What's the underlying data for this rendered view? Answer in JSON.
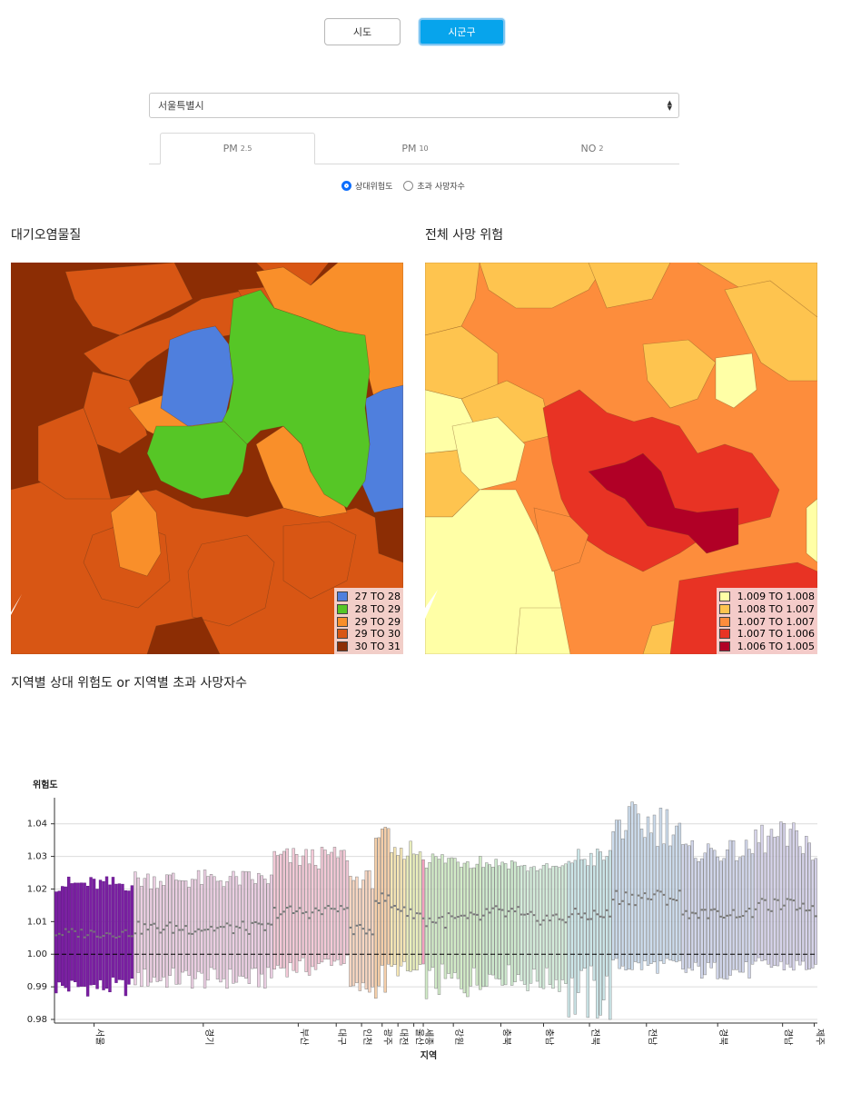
{
  "level_toggle": {
    "sido": "시도",
    "sigungu": "시군구",
    "active": "sigungu"
  },
  "region_select": {
    "value": "서울특별시"
  },
  "pollutant_tabs": [
    {
      "main": "PM",
      "sub": "2.5",
      "active": true
    },
    {
      "main": "PM",
      "sub": "10",
      "active": false
    },
    {
      "main": "NO",
      "sub": "2",
      "active": false
    }
  ],
  "metric_radios": [
    {
      "label": "상대위험도",
      "checked": true
    },
    {
      "label": "초과 사망자수",
      "checked": false
    }
  ],
  "pollutant_map": {
    "title": "대기오염물질",
    "legend": [
      {
        "label": "27 TO 28",
        "color": "#4f7fdd"
      },
      {
        "label": "28 TO 29",
        "color": "#56c626"
      },
      {
        "label": "29 TO 29",
        "color": "#f98f2a"
      },
      {
        "label": "29 TO 30",
        "color": "#d85614"
      },
      {
        "label": "30 TO 31",
        "color": "#8c2d04"
      }
    ]
  },
  "risk_map": {
    "title": "전체 사망 위험",
    "legend": [
      {
        "label": "1.009 TO 1.008",
        "color": "#ffffa6"
      },
      {
        "label": "1.008 TO 1.007",
        "color": "#fec44f"
      },
      {
        "label": "1.007 TO 1.007",
        "color": "#fd8d3c"
      },
      {
        "label": "1.007 TO 1.006",
        "color": "#e83324"
      },
      {
        "label": "1.006 TO 1.005",
        "color": "#b10026"
      }
    ]
  },
  "regional_section": {
    "title": "지역별 상대 위험도 or 지역별 초과 사망자수"
  },
  "chart_data": {
    "type": "errorbar",
    "ylabel": "위험도",
    "xlabel": "지역",
    "ylim": [
      0.98,
      1.048
    ],
    "yticks": [
      0.98,
      0.99,
      1.0,
      1.01,
      1.02,
      1.03,
      1.04
    ],
    "reference_line": 1.0,
    "groups": [
      {
        "name": "서울",
        "count": 25,
        "color": "#7b1fa2",
        "est_range": [
          1.005,
          1.008
        ],
        "lower_range": [
          0.987,
          0.993
        ],
        "upper_range": [
          1.019,
          1.024
        ]
      },
      {
        "name": "경기",
        "count": 44,
        "color": "#e8c6dd",
        "est_range": [
          1.006,
          1.01
        ],
        "lower_range": [
          0.989,
          0.996
        ],
        "upper_range": [
          1.02,
          1.026
        ]
      },
      {
        "name": "부산",
        "count": 16,
        "color": "#f2bfd0",
        "est_range": [
          1.011,
          1.015
        ],
        "lower_range": [
          0.993,
          0.999
        ],
        "upper_range": [
          1.026,
          1.033
        ]
      },
      {
        "name": "대구",
        "count": 8,
        "color": "#f2bfd0",
        "est_range": [
          1.013,
          1.015
        ],
        "lower_range": [
          0.996,
          1.0
        ],
        "upper_range": [
          1.028,
          1.033
        ]
      },
      {
        "name": "인천",
        "count": 8,
        "color": "#f7cfb6",
        "est_range": [
          1.006,
          1.009
        ],
        "lower_range": [
          0.987,
          0.992
        ],
        "upper_range": [
          1.02,
          1.026
        ]
      },
      {
        "name": "광주",
        "count": 5,
        "color": "#f5c79a",
        "est_range": [
          1.015,
          1.019
        ],
        "lower_range": [
          0.986,
          0.998
        ],
        "upper_range": [
          1.034,
          1.039
        ]
      },
      {
        "name": "대전",
        "count": 5,
        "color": "#f6e3a8",
        "est_range": [
          1.012,
          1.017
        ],
        "lower_range": [
          0.993,
          0.998
        ],
        "upper_range": [
          1.029,
          1.033
        ]
      },
      {
        "name": "울산",
        "count": 5,
        "color": "#e6ecb0",
        "est_range": [
          1.011,
          1.014
        ],
        "lower_range": [
          0.992,
          0.997
        ],
        "upper_range": [
          1.028,
          1.036
        ]
      },
      {
        "name": "세종",
        "count": 1,
        "color": "#f28fb3",
        "est_range": [
          1.011,
          1.011
        ],
        "lower_range": [
          0.997,
          0.997
        ],
        "upper_range": [
          1.029,
          1.029
        ]
      },
      {
        "name": "강원",
        "count": 18,
        "color": "#c9e8bd",
        "est_range": [
          1.008,
          1.013
        ],
        "lower_range": [
          0.986,
          0.997
        ],
        "upper_range": [
          1.026,
          1.032
        ]
      },
      {
        "name": "충북",
        "count": 12,
        "color": "#c6e6c6",
        "est_range": [
          1.01,
          1.015
        ],
        "lower_range": [
          0.99,
          0.997
        ],
        "upper_range": [
          1.026,
          1.03
        ]
      },
      {
        "name": "충남",
        "count": 15,
        "color": "#cbe9d4",
        "est_range": [
          1.009,
          1.013
        ],
        "lower_range": [
          0.988,
          0.996
        ],
        "upper_range": [
          1.025,
          1.028
        ]
      },
      {
        "name": "전북",
        "count": 14,
        "color": "#c2e2e4",
        "est_range": [
          1.01,
          1.014
        ],
        "lower_range": [
          0.978,
          0.997
        ],
        "upper_range": [
          1.026,
          1.033
        ]
      },
      {
        "name": "전남",
        "count": 22,
        "color": "#c3d6ea",
        "est_range": [
          1.015,
          1.02
        ],
        "lower_range": [
          0.994,
          0.999
        ],
        "upper_range": [
          1.033,
          1.047
        ]
      },
      {
        "name": "경북",
        "count": 23,
        "color": "#c9cfe8",
        "est_range": [
          1.011,
          1.014
        ],
        "lower_range": [
          0.992,
          0.998
        ],
        "upper_range": [
          1.028,
          1.035
        ]
      },
      {
        "name": "경남",
        "count": 18,
        "color": "#cfcbe6",
        "est_range": [
          1.013,
          1.017
        ],
        "lower_range": [
          0.994,
          0.999
        ],
        "upper_range": [
          1.03,
          1.041
        ]
      },
      {
        "name": "제주",
        "count": 2,
        "color": "#cfcbe6",
        "est_range": [
          1.011,
          1.015
        ],
        "lower_range": [
          0.994,
          0.997
        ],
        "upper_range": [
          1.027,
          1.03
        ]
      }
    ]
  }
}
